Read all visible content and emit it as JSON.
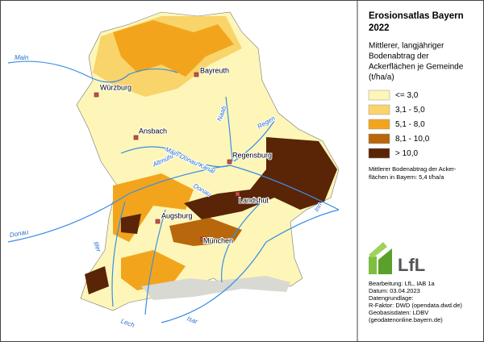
{
  "title": [
    "Erosionsatlas Bayern",
    "2022"
  ],
  "legend": {
    "heading": [
      "Mittlerer, langjähriger",
      "Bodenabtrag der",
      "Ackerflächen je Gemeinde",
      "(t/ha/a)"
    ],
    "items": [
      {
        "label": "<= 3,0",
        "color": "#fdf6b8"
      },
      {
        "label": "3,1 - 5,0",
        "color": "#f9d46a"
      },
      {
        "label": "5,1 - 8,0",
        "color": "#f2a51c"
      },
      {
        "label": "8,1 - 10,0",
        "color": "#b8670c"
      },
      {
        "label": "> 10,0",
        "color": "#5a2406"
      }
    ]
  },
  "note": [
    "Mittlerer Bodenabtrag der Acker-",
    "flächen in Bayern: 5,4 t/ha/a"
  ],
  "logo": "LfL",
  "credits": [
    "Bearbeitung: LfL, IAB 1a",
    "Datum:  03.04.2023",
    "Datengrundlage:",
    "R-Faktor: DWD (opendata.dwd.de)",
    "Geobasisdaten: LDBV",
    "(geodatenonline.bayern.de)"
  ],
  "cities": [
    "Bayreuth",
    "Würzburg",
    "Ansbach",
    "Regensburg",
    "Landshut",
    "Augsburg",
    "München"
  ],
  "rivers": [
    "Main",
    "Regen",
    "Naab",
    "Donau",
    "Altmühl",
    "Main-Donau-Kanal",
    "Iller",
    "Lech",
    "Isar",
    "Inn",
    "Donau"
  ]
}
